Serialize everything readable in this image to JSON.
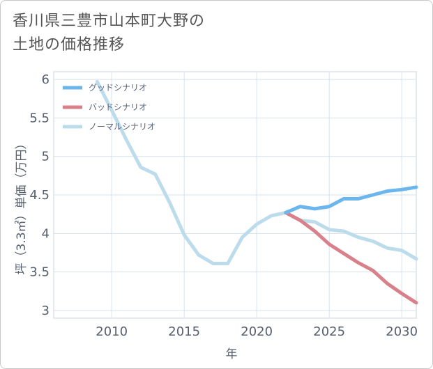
{
  "title_lines": [
    "香川県三豊市山本町大野の",
    "土地の価格推移"
  ],
  "chart_data": {
    "type": "line",
    "title": "香川県三豊市山本町大野の土地の価格推移",
    "xlabel": "年",
    "ylabel": "坪（3.3㎡）単価（万円）",
    "xlim": [
      2006,
      2031
    ],
    "ylim": [
      2.9,
      6.1
    ],
    "x_ticks": [
      2010,
      2015,
      2020,
      2025,
      2030
    ],
    "y_ticks": [
      3,
      3.5,
      4,
      4.5,
      5,
      5.5,
      6
    ],
    "x_tick_labels": [
      "2010",
      "2015",
      "2020",
      "2025",
      "2030"
    ],
    "y_tick_labels": [
      "3",
      "3.5",
      "4",
      "4.5",
      "5",
      "5.5",
      "6"
    ],
    "grid": true,
    "legend_position": "top-left",
    "series": [
      {
        "name": "グッドシナリオ",
        "color": "#6cb6ee",
        "x": [
          2022,
          2023,
          2024,
          2025,
          2026,
          2027,
          2028,
          2029,
          2030,
          2031
        ],
        "y": [
          4.27,
          4.35,
          4.32,
          4.35,
          4.45,
          4.45,
          4.5,
          4.55,
          4.57,
          4.6
        ]
      },
      {
        "name": "バッドシナリオ",
        "color": "#d9818a",
        "x": [
          2022,
          2023,
          2024,
          2025,
          2026,
          2027,
          2028,
          2029,
          2030,
          2031
        ],
        "y": [
          4.27,
          4.17,
          4.03,
          3.86,
          3.74,
          3.62,
          3.52,
          3.35,
          3.22,
          3.1
        ]
      },
      {
        "name": "ノーマルシナリオ",
        "color": "#bcdcec",
        "x": [
          2009,
          2010,
          2011,
          2012,
          2013,
          2014,
          2015,
          2016,
          2017,
          2018,
          2019,
          2020,
          2021,
          2022,
          2023,
          2024,
          2025,
          2026,
          2027,
          2028,
          2029,
          2030,
          2031
        ],
        "y": [
          5.97,
          5.6,
          5.22,
          4.86,
          4.77,
          4.4,
          3.98,
          3.72,
          3.61,
          3.61,
          3.95,
          4.12,
          4.23,
          4.27,
          4.17,
          4.15,
          4.05,
          4.03,
          3.95,
          3.9,
          3.81,
          3.78,
          3.67
        ]
      }
    ]
  }
}
